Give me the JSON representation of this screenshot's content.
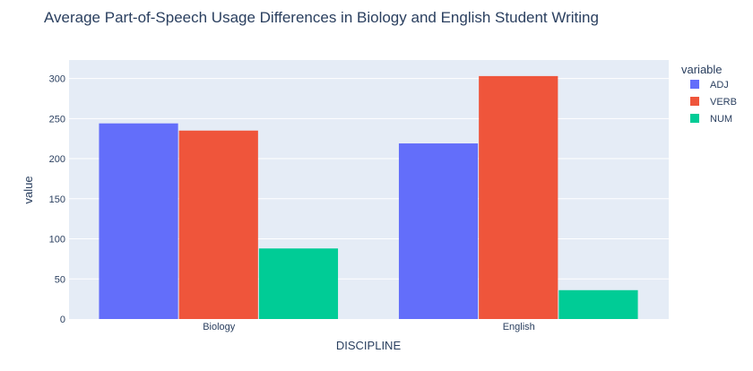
{
  "chart_data": {
    "type": "bar",
    "title": "Average Part-of-Speech Usage Differences in Biology and English Student Writing",
    "xlabel": "DISCIPLINE",
    "ylabel": "value",
    "categories": [
      "Biology",
      "English"
    ],
    "series": [
      {
        "name": "ADJ",
        "values": [
          244,
          219
        ],
        "color": "#636efa"
      },
      {
        "name": "VERB",
        "values": [
          235,
          303
        ],
        "color": "#ef553b"
      },
      {
        "name": "NUM",
        "values": [
          88,
          36
        ],
        "color": "#00cc96"
      }
    ],
    "ylim": [
      0,
      323
    ],
    "yticks": [
      0,
      50,
      100,
      150,
      200,
      250,
      300
    ],
    "grid": true,
    "legend": {
      "title": "variable",
      "placement": "right"
    },
    "plot_bg": "#e5ecf6"
  }
}
